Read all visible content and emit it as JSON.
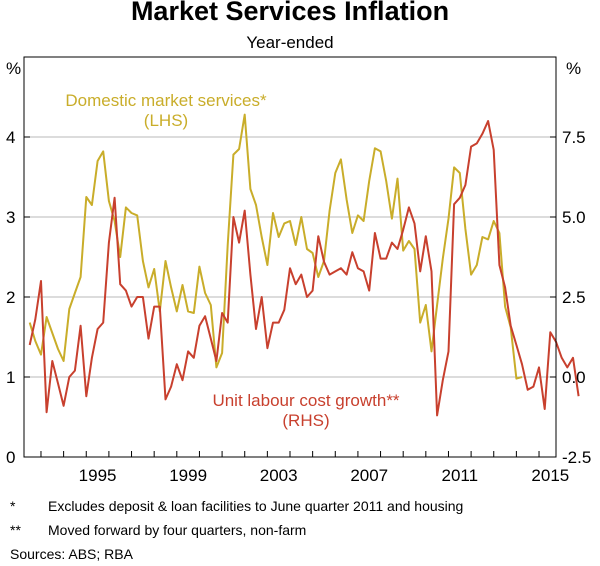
{
  "chart_data": {
    "type": "line",
    "title": "Market Services Inflation",
    "subtitle": "Year-ended",
    "y_left_unit": "%",
    "y_right_unit": "%",
    "y_left": {
      "min": 0,
      "max": 5,
      "ticks": [
        0,
        1,
        2,
        3,
        4
      ],
      "tick_labels": [
        "0",
        "1",
        "2",
        "3",
        "4"
      ]
    },
    "y_right": {
      "min": -2.5,
      "max": 10,
      "ticks": [
        -2.5,
        0.0,
        2.5,
        5.0,
        7.5
      ],
      "tick_labels": [
        "-2.5",
        "0.0",
        "2.5",
        "5.0",
        "7.5"
      ]
    },
    "x_range": [
      1992.25,
      2015.75
    ],
    "x_ticks": [
      1995,
      1999,
      2003,
      2007,
      2011,
      2015
    ],
    "x_tick_labels": [
      "1995",
      "1999",
      "2003",
      "2007",
      "2011",
      "2015"
    ],
    "grid": "horizontal",
    "colors": {
      "domestic": "#c9ad2a",
      "labour": "#c8402e",
      "grid": "#b8b8b8",
      "frame": "#000000"
    },
    "series": [
      {
        "name": "Domestic market services*",
        "sublabel": "(LHS)",
        "axis": "left",
        "color": "#c9ad2a",
        "start": 1992.5,
        "step": 0.25,
        "values": [
          1.68,
          1.45,
          1.28,
          1.75,
          1.55,
          1.35,
          1.2,
          1.85,
          2.05,
          2.25,
          3.25,
          3.15,
          3.7,
          3.82,
          3.2,
          2.95,
          2.5,
          3.12,
          3.05,
          3.02,
          2.45,
          2.12,
          2.35,
          1.82,
          2.45,
          2.12,
          1.82,
          2.15,
          1.82,
          1.8,
          2.38,
          2.05,
          1.9,
          1.12,
          1.3,
          2.65,
          3.78,
          3.85,
          4.28,
          3.35,
          3.15,
          2.75,
          2.4,
          3.05,
          2.75,
          2.92,
          2.95,
          2.65,
          3.0,
          2.6,
          2.55,
          2.25,
          2.45,
          3.08,
          3.55,
          3.72,
          3.22,
          2.8,
          3.02,
          2.95,
          3.45,
          3.86,
          3.82,
          3.45,
          2.98,
          3.48,
          2.58,
          2.7,
          2.6,
          1.68,
          1.9,
          1.32,
          1.9,
          2.48,
          2.98,
          3.62,
          3.55,
          2.85,
          2.28,
          2.4,
          2.75,
          2.72,
          2.95,
          2.8,
          1.88,
          1.62,
          0.98,
          1.0
        ]
      },
      {
        "name": "Unit labour cost growth**",
        "sublabel": "(RHS)",
        "axis": "right",
        "color": "#c8402e",
        "start": 1992.5,
        "step": 0.25,
        "values": [
          1.0,
          1.8,
          3.0,
          -1.1,
          0.5,
          -0.2,
          -0.9,
          0.0,
          0.2,
          1.6,
          -0.6,
          0.6,
          1.5,
          1.7,
          4.2,
          5.6,
          2.9,
          2.7,
          2.2,
          2.5,
          2.5,
          1.2,
          2.2,
          2.2,
          -0.7,
          -0.3,
          0.4,
          -0.1,
          0.8,
          0.6,
          1.6,
          1.9,
          1.2,
          0.5,
          2.0,
          1.7,
          5.0,
          4.2,
          5.2,
          3.2,
          1.5,
          2.5,
          0.9,
          1.7,
          1.7,
          2.1,
          3.4,
          2.9,
          3.2,
          2.5,
          2.7,
          4.4,
          3.6,
          3.2,
          3.3,
          3.4,
          3.2,
          3.9,
          3.4,
          3.3,
          2.7,
          4.5,
          3.7,
          3.7,
          4.2,
          4.0,
          4.6,
          5.3,
          4.8,
          3.3,
          4.4,
          3.3,
          -1.2,
          -0.1,
          0.8,
          5.4,
          5.6,
          6.0,
          7.2,
          7.3,
          7.6,
          8.0,
          7.1,
          3.5,
          2.8,
          1.6,
          1.0,
          0.4,
          -0.4,
          -0.3,
          0.3,
          -1.0,
          1.4,
          1.1,
          0.6,
          0.3,
          0.6,
          -0.6
        ]
      }
    ]
  },
  "footnotes": [
    {
      "marker": "*",
      "text": "Excludes deposit & loan facilities to June quarter 2011 and housing"
    },
    {
      "marker": "**",
      "text": "Moved forward by four quarters, non-farm"
    }
  ],
  "sources": "Sources:  ABS; RBA"
}
